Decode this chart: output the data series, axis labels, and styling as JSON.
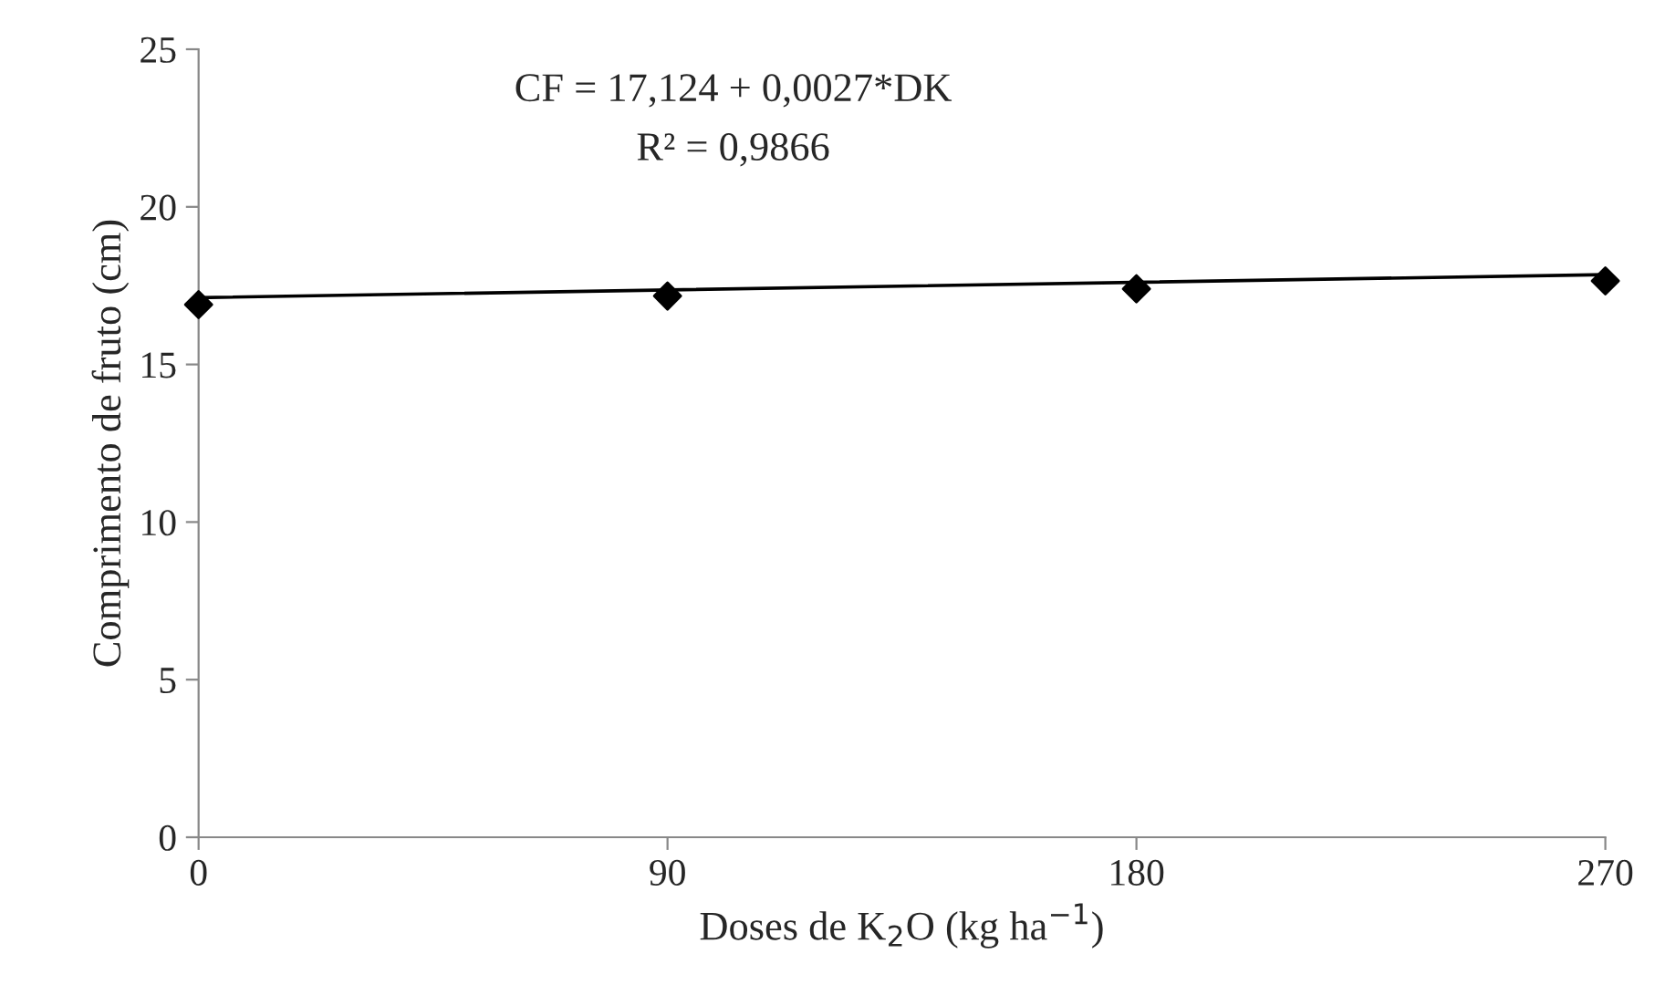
{
  "chart_data": {
    "type": "scatter",
    "xlabel": "Doses de K$_{2}$O (kg ha$^{−1}$)",
    "ylabel": "Comprimento de fruto (cm)",
    "x": [
      0,
      90,
      180,
      270
    ],
    "xlim": [
      0,
      270
    ],
    "xticks": [
      0,
      90,
      180,
      270
    ],
    "ylim": [
      0,
      25
    ],
    "yticks": [
      0,
      5,
      10,
      15,
      20,
      25
    ],
    "series": [
      {
        "color": "#000000",
        "marker": "diamond",
        "values": [
          16.9,
          17.17,
          17.4,
          17.65
        ]
      },
      {
        "type": "line",
        "color": "#000000",
        "x": [
          0,
          270
        ],
        "values": [
          17.12,
          17.85
        ],
        "marker": "none",
        "line_style": "solid"
      }
    ],
    "annotations": [
      "CF = 17,124 + 0,0027*DK",
      "R² = 0,9866"
    ],
    "grid": false,
    "legend": false
  }
}
